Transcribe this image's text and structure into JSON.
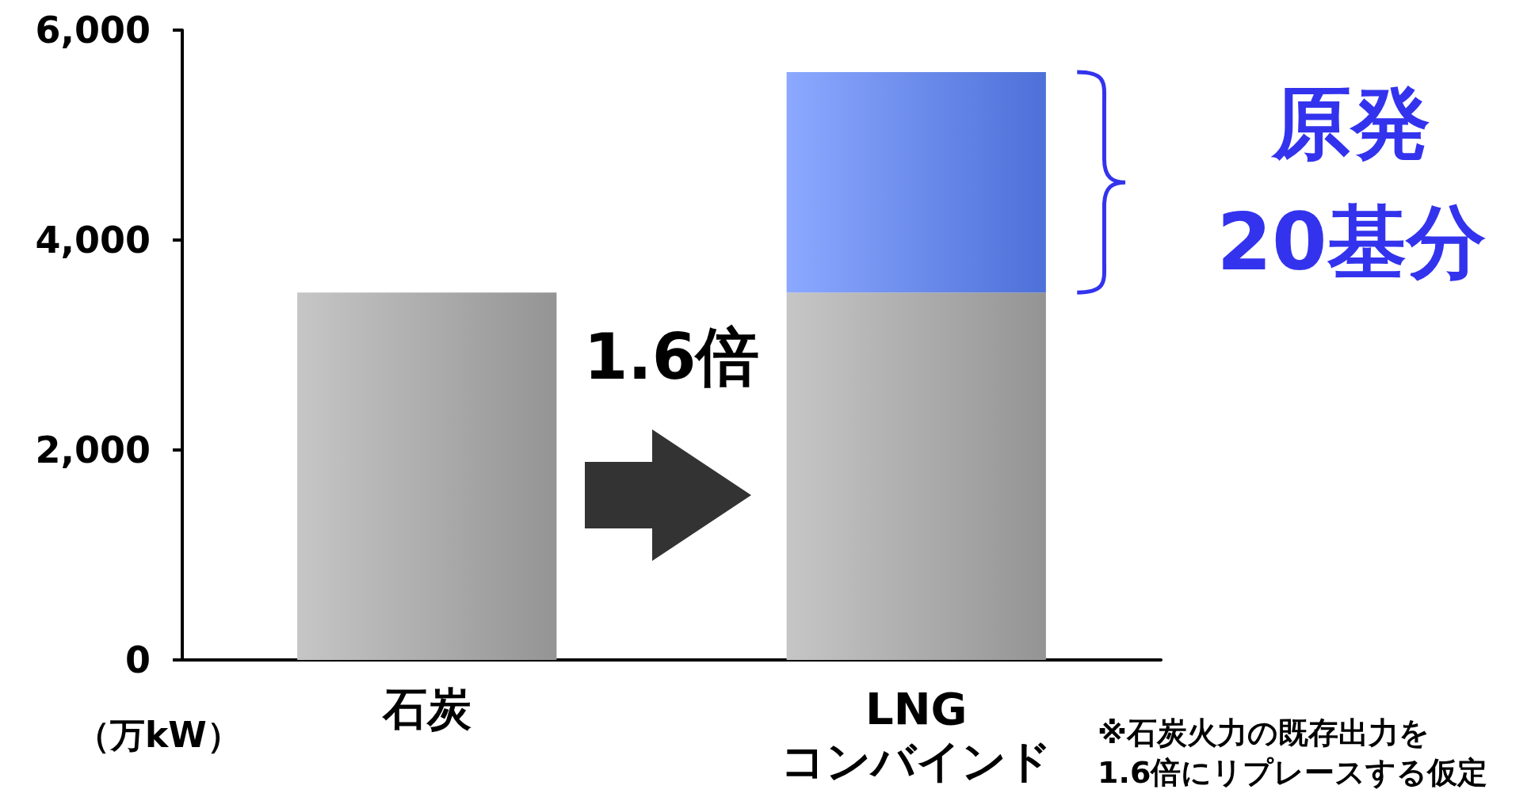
{
  "chart_data": {
    "type": "bar",
    "stacked": true,
    "ylabel": "（万kW）",
    "categories": [
      "石炭",
      "LNG\nコンバインド"
    ],
    "series": [
      {
        "color": "#aeaeae",
        "values": [
          3500,
          3500
        ]
      },
      {
        "color": "#5a84ff",
        "values": [
          null,
          2100
        ]
      }
    ],
    "ylim": [
      0,
      6000
    ],
    "yticks": [
      {
        "value": 0,
        "label": "0"
      },
      {
        "value": 2000,
        "label": "2,000"
      },
      {
        "value": 4000,
        "label": "4,000"
      },
      {
        "value": 6000,
        "label": "6,000"
      }
    ],
    "grid": false,
    "annotations": [
      "1.6倍",
      "原発\n20基分",
      "※石炭火力の既存出力を\n1.6倍にリプレースする仮定"
    ]
  }
}
